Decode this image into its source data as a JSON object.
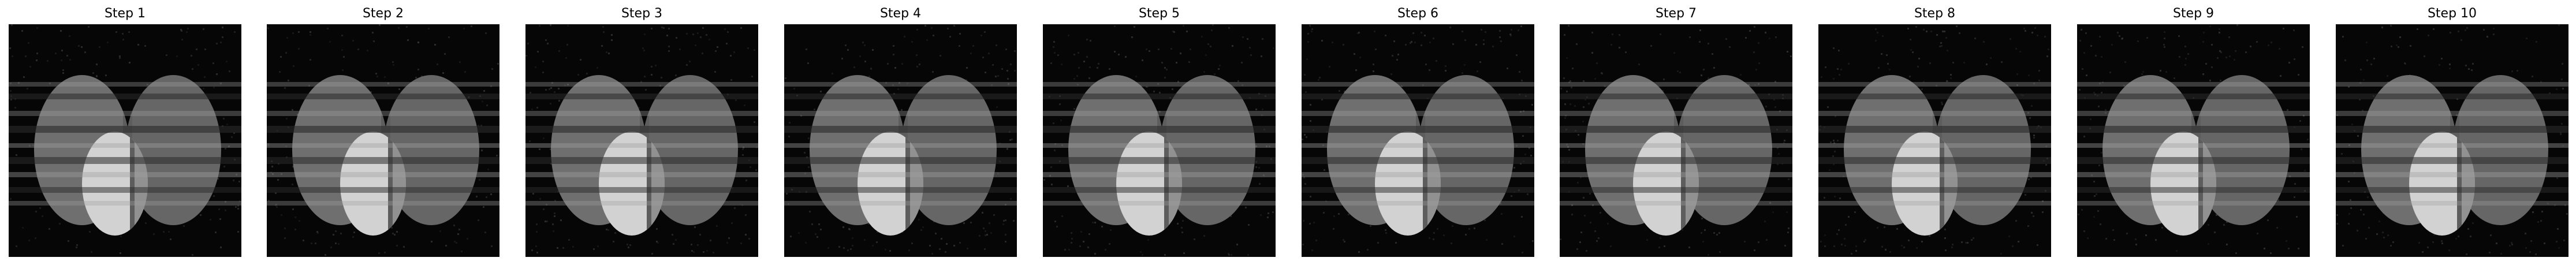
{
  "figure": {
    "panels": [
      {
        "title": "Step 1"
      },
      {
        "title": "Step 2"
      },
      {
        "title": "Step 3"
      },
      {
        "title": "Step 4"
      },
      {
        "title": "Step 5"
      },
      {
        "title": "Step 6"
      },
      {
        "title": "Step 7"
      },
      {
        "title": "Step 8"
      },
      {
        "title": "Step 9"
      },
      {
        "title": "Step 10"
      }
    ]
  },
  "colors": {
    "background": "#ffffff",
    "image_background": "#060606",
    "left_lobe": "#6f6f6f",
    "right_lobe": "#666666",
    "bright_lobe": "#d2d2d2",
    "overlap_dark": "#5d5d5d",
    "stripe_light": "#a0a0a0",
    "stripe_dark": "#2a2a2a",
    "noise": "#3a3a3a"
  }
}
